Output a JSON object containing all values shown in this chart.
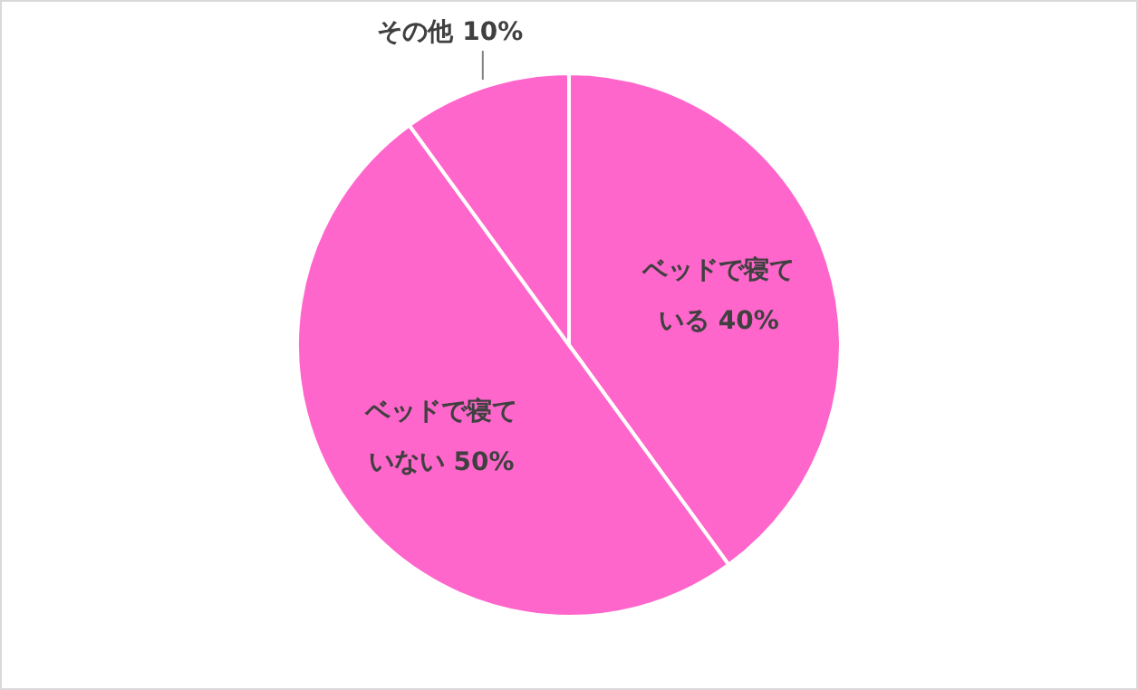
{
  "chart_data": {
    "type": "pie",
    "categories": [
      "ベッドで寝ている",
      "ベッドで寝ていない",
      "その他"
    ],
    "values": [
      40,
      50,
      10
    ],
    "value_labels": [
      "40%",
      "50%",
      "10%"
    ],
    "colors": [
      "#ff66cc",
      "#ff66cc",
      "#ff66cc"
    ]
  }
}
